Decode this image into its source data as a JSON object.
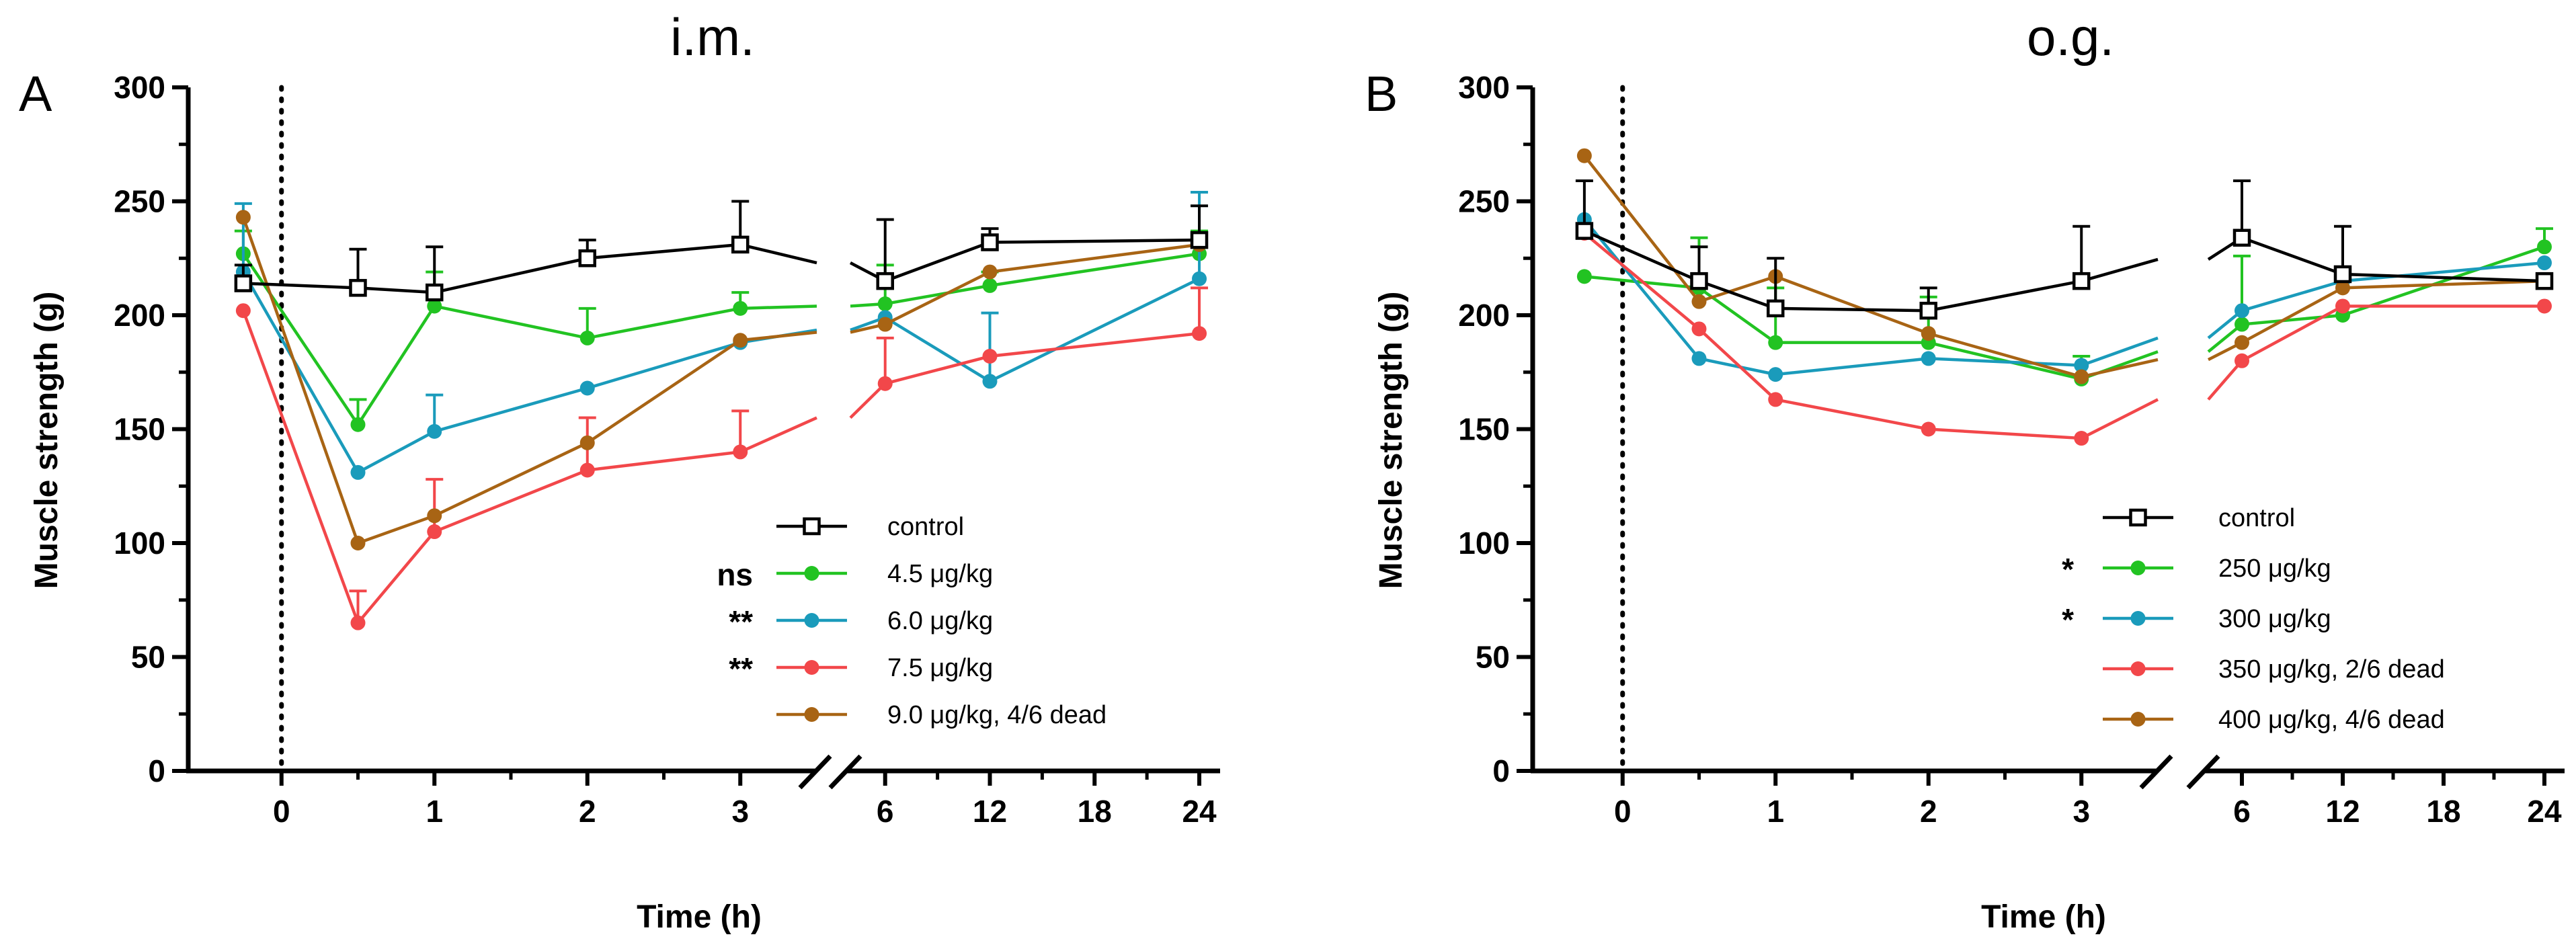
{
  "chart_data": [
    {
      "type": "line",
      "panel_letter": "A",
      "title": "i.m.",
      "xlabel": "Time (h)",
      "ylabel": "Muscle strength (g)",
      "ylim": [
        0,
        300
      ],
      "yticks": [
        "0",
        "50",
        "100",
        "150",
        "200",
        "250",
        "300"
      ],
      "x_segments": [
        {
          "range": [
            -0.5,
            3.5
          ],
          "ticks": [
            0,
            1,
            2,
            3
          ],
          "tick_labels": [
            "0",
            "1",
            "2",
            "3"
          ]
        },
        {
          "range": [
            4.2,
            25
          ],
          "ticks": [
            6,
            12,
            18,
            24
          ],
          "tick_labels": [
            "6",
            "12",
            "18",
            "24"
          ]
        }
      ],
      "baseline_x": 0,
      "series": [
        {
          "name": "control",
          "color": "#000000",
          "marker": "square",
          "significance": "",
          "x": [
            -0.25,
            0.5,
            1,
            2,
            3,
            6,
            12,
            24
          ],
          "values": [
            214,
            212,
            210,
            225,
            231,
            215,
            232,
            233
          ],
          "errors": [
            8,
            17,
            20,
            8,
            19,
            27,
            6,
            15
          ]
        },
        {
          "name": "4.5 μg/kg",
          "color": "#22C322",
          "marker": "circle",
          "significance": "ns",
          "x": [
            -0.25,
            0.5,
            1,
            2,
            3,
            6,
            12,
            24
          ],
          "values": [
            227,
            152,
            204,
            190,
            203,
            205,
            213,
            227
          ],
          "errors": [
            10,
            11,
            15,
            13,
            7,
            17,
            6,
            10
          ]
        },
        {
          "name": "6.0 μg/kg",
          "color": "#1A9BBB",
          "marker": "circle",
          "significance": "**",
          "x": [
            -0.25,
            0.5,
            1,
            2,
            3,
            6,
            12,
            24
          ],
          "values": [
            219,
            131,
            149,
            168,
            188,
            199,
            171,
            216
          ],
          "errors": [
            30,
            0,
            16,
            0,
            0,
            0,
            30,
            38
          ]
        },
        {
          "name": "7.5 μg/kg",
          "color": "#F2474A",
          "marker": "circle",
          "significance": "**",
          "x": [
            -0.25,
            0.5,
            1,
            2,
            3,
            6,
            12,
            24
          ],
          "values": [
            202,
            65,
            105,
            132,
            140,
            170,
            182,
            192
          ],
          "errors": [
            0,
            14,
            23,
            23,
            18,
            20,
            0,
            20
          ]
        },
        {
          "name": "9.0 μg/kg, 4/6 dead",
          "color": "#A86414",
          "marker": "circle",
          "significance": "",
          "x": [
            -0.25,
            0.5,
            1,
            2,
            3,
            6,
            12,
            24
          ],
          "values": [
            243,
            100,
            112,
            144,
            189,
            196,
            219,
            231
          ],
          "errors": [
            0,
            0,
            0,
            0,
            0,
            0,
            0,
            0
          ]
        }
      ]
    },
    {
      "type": "line",
      "panel_letter": "B",
      "title": "o.g.",
      "xlabel": "Time (h)",
      "ylabel": "Muscle strength (g)",
      "ylim": [
        0,
        300
      ],
      "yticks": [
        "0",
        "50",
        "100",
        "150",
        "200",
        "250",
        "300"
      ],
      "x_segments": [
        {
          "range": [
            -0.5,
            3.5
          ],
          "ticks": [
            0,
            1,
            2,
            3
          ],
          "tick_labels": [
            "0",
            "1",
            "2",
            "3"
          ]
        },
        {
          "range": [
            4.2,
            25
          ],
          "ticks": [
            6,
            12,
            18,
            24
          ],
          "tick_labels": [
            "6",
            "12",
            "18",
            "24"
          ]
        }
      ],
      "baseline_x": 0,
      "series": [
        {
          "name": "control",
          "color": "#000000",
          "marker": "square",
          "significance": "",
          "x": [
            -0.25,
            0.5,
            1,
            2,
            3,
            6,
            12,
            24
          ],
          "values": [
            237,
            215,
            203,
            202,
            215,
            234,
            218,
            215
          ],
          "errors": [
            22,
            15,
            22,
            10,
            24,
            25,
            21,
            3
          ]
        },
        {
          "name": "250 μg/kg",
          "color": "#22C322",
          "marker": "circle",
          "significance": "*",
          "x": [
            -0.25,
            0.5,
            1,
            2,
            3,
            6,
            12,
            24
          ],
          "values": [
            217,
            212,
            188,
            188,
            172,
            196,
            200,
            230
          ],
          "errors": [
            0,
            22,
            24,
            20,
            10,
            30,
            0,
            8
          ]
        },
        {
          "name": "300 μg/kg",
          "color": "#1A9BBB",
          "marker": "circle",
          "significance": "*",
          "x": [
            -0.25,
            0.5,
            1,
            2,
            3,
            6,
            12,
            24
          ],
          "values": [
            242,
            181,
            174,
            181,
            178,
            202,
            215,
            223
          ],
          "errors": [
            0,
            0,
            0,
            0,
            0,
            0,
            0,
            0
          ]
        },
        {
          "name": "350 μg/kg, 2/6 dead",
          "color": "#F2474A",
          "marker": "circle",
          "significance": "",
          "x": [
            -0.25,
            0.5,
            1,
            2,
            3,
            6,
            12,
            24
          ],
          "values": [
            236,
            194,
            163,
            150,
            146,
            180,
            204,
            204
          ],
          "errors": [
            0,
            0,
            0,
            0,
            0,
            0,
            0,
            0
          ]
        },
        {
          "name": "400 μg/kg, 4/6 dead",
          "color": "#A86414",
          "marker": "circle",
          "significance": "",
          "x": [
            -0.25,
            0.5,
            1,
            2,
            3,
            6,
            12,
            24
          ],
          "values": [
            270,
            206,
            217,
            192,
            173,
            188,
            212,
            215
          ],
          "errors": [
            0,
            0,
            0,
            0,
            0,
            0,
            0,
            0
          ]
        }
      ]
    }
  ]
}
